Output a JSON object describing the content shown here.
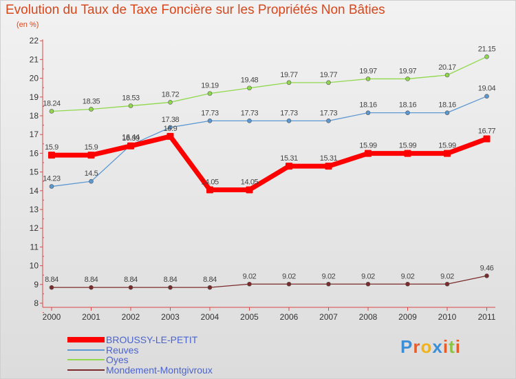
{
  "chart_data": {
    "type": "line",
    "title": "Evolution du Taux de Taxe Foncière sur les Propriétés Non Bâties",
    "subtitle": "(en %)",
    "categories": [
      "2000",
      "2001",
      "2002",
      "2003",
      "2004",
      "2005",
      "2006",
      "2007",
      "2008",
      "2009",
      "2010",
      "2011"
    ],
    "ylim": [
      8,
      22
    ],
    "yticks": [
      "8",
      "9",
      "10",
      "11",
      "12",
      "13",
      "14",
      "15",
      "16",
      "17",
      "18",
      "19",
      "20",
      "21",
      "22"
    ],
    "series": [
      {
        "name": "Mondement-Montgivroux",
        "color": "#7a2a2a",
        "values": [
          8.84,
          8.84,
          8.84,
          8.84,
          8.84,
          9.02,
          9.02,
          9.02,
          9.02,
          9.02,
          9.02,
          9.46
        ],
        "labels": [
          "8.84",
          "8.84",
          "8.84",
          "8.84",
          "8.84",
          "9.02",
          "9.02",
          "9.02",
          "9.02",
          "9.02",
          "9.02",
          "9.46"
        ]
      },
      {
        "name": "Oyes",
        "color": "#8fd84a",
        "values": [
          18.24,
          18.35,
          18.53,
          18.72,
          19.19,
          19.48,
          19.77,
          19.77,
          19.97,
          19.97,
          20.17,
          21.15
        ],
        "labels": [
          "18.24",
          "18.35",
          "18.53",
          "18.72",
          "19.19",
          "19.48",
          "19.77",
          "19.77",
          "19.97",
          "19.97",
          "20.17",
          "21.15"
        ]
      },
      {
        "name": "Reuves",
        "color": "#5b97d1",
        "values": [
          14.23,
          14.5,
          16.44,
          17.38,
          17.73,
          17.73,
          17.73,
          17.73,
          18.16,
          18.16,
          18.16,
          19.04
        ],
        "labels": [
          "14.23",
          "14.5",
          "16.44",
          "17.38",
          "17.73",
          "17.73",
          "17.73",
          "17.73",
          "18.16",
          "18.16",
          "18.16",
          "19.04"
        ]
      },
      {
        "name": "BROUSSY-LE-PETIT",
        "color": "#ff0000",
        "values": [
          15.9,
          15.9,
          16.39,
          16.9,
          14.05,
          14.05,
          15.31,
          15.31,
          15.99,
          15.99,
          15.99,
          16.77
        ],
        "labels": [
          "15.9",
          "15.9",
          "16.39",
          "16.9",
          "14.05",
          "14.05",
          "15.31",
          "15.31",
          "15.99",
          "15.99",
          "15.99",
          "16.77"
        ]
      }
    ],
    "legend": [
      {
        "name": "BROUSSY-LE-PETIT",
        "color": "#ff0000",
        "thick": true
      },
      {
        "name": "Reuves",
        "color": "#5b97d1",
        "thick": false
      },
      {
        "name": "Oyes",
        "color": "#8fd84a",
        "thick": false
      },
      {
        "name": "Mondement-Montgivroux",
        "color": "#7a2a2a",
        "thick": false
      }
    ],
    "legend_position": "bottom-left",
    "grid": false
  },
  "brand": {
    "text": "Proxiti",
    "letters": [
      {
        "ch": "P",
        "color": "#3b8fd9"
      },
      {
        "ch": "r",
        "color": "#e85c2a"
      },
      {
        "ch": "o",
        "color": "#f2b21a"
      },
      {
        "ch": "x",
        "color": "#3b8fd9"
      },
      {
        "ch": "i",
        "color": "#e85c2a"
      },
      {
        "ch": "t",
        "color": "#8cc63f"
      },
      {
        "ch": "i",
        "color": "#e85c2a"
      }
    ]
  }
}
